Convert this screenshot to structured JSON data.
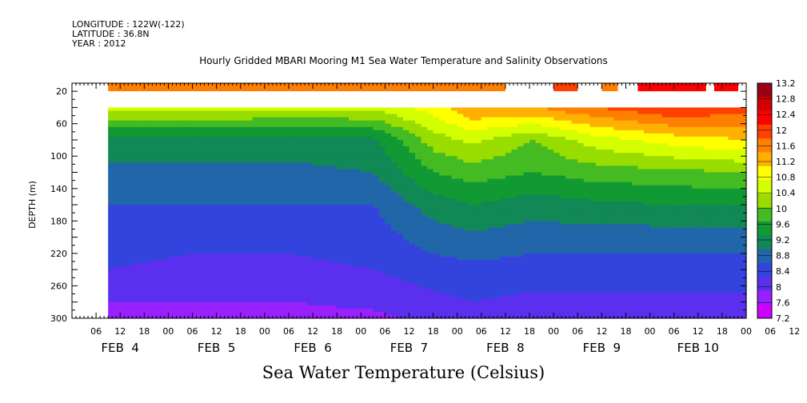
{
  "header": {
    "longitude": "LONGITUDE : 122W(-122)",
    "latitude": "LATITUDE : 36.8N",
    "year": "YEAR : 2012"
  },
  "chart_data": {
    "type": "heatmap",
    "title": "Hourly Gridded MBARI Mooring M1 Sea Water Temperature and Salinity Observations",
    "colorbar_label": "Sea Water Temperature (Celsius)",
    "ylabel": "DEPTH (m)",
    "ylim": [
      300,
      10
    ],
    "y_ticks": [
      20,
      60,
      100,
      140,
      180,
      220,
      260,
      300
    ],
    "x_tick_labels": [
      "06",
      "12",
      "18",
      "00",
      "06",
      "12",
      "18",
      "00",
      "06",
      "12",
      "18",
      "00",
      "06",
      "12",
      "18",
      "00",
      "06",
      "12",
      "18",
      "00",
      "06",
      "12",
      "18",
      "00",
      "06",
      "12",
      "18",
      "00",
      "06",
      "12",
      "18"
    ],
    "x_day_labels": [
      "FEB  4",
      "FEB  5",
      "FEB  6",
      "FEB  7",
      "FEB  8",
      "FEB  9",
      "FEB 10"
    ],
    "colorbar_levels": [
      "13.2",
      "12.8",
      "12.4",
      "12",
      "11.6",
      "11.2",
      "10.8",
      "10.4",
      "10",
      "9.6",
      "9.2",
      "8.8",
      "8.4",
      "8",
      "7.6",
      "7.2"
    ],
    "colors": [
      "#9a0016",
      "#d40000",
      "#ff0000",
      "#ff4000",
      "#ff8000",
      "#ffb000",
      "#ffff00",
      "#d4ff00",
      "#99dd00",
      "#44bb22",
      "#119933",
      "#118855",
      "#2266aa",
      "#3344dd",
      "#5a30ee",
      "#9920ff",
      "#cc00ff"
    ],
    "depths": [
      40,
      80,
      120,
      160,
      200,
      240,
      280,
      300
    ],
    "time_start_hours": 9,
    "time_end_hours": 168,
    "profiles": [
      {
        "t": 9,
        "temps": [
          10.6,
          9.0,
          8.7,
          8.4,
          8.2,
          8.0,
          7.6,
          7.5
        ]
      },
      {
        "t": 30,
        "temps": [
          10.6,
          9.0,
          8.7,
          8.4,
          8.1,
          7.9,
          7.6,
          7.4
        ]
      },
      {
        "t": 54,
        "temps": [
          10.5,
          9.0,
          8.7,
          8.4,
          8.1,
          7.9,
          7.6,
          7.4
        ]
      },
      {
        "t": 75,
        "temps": [
          10.5,
          9.1,
          8.8,
          8.4,
          8.2,
          8.0,
          7.7,
          7.5
        ]
      },
      {
        "t": 90,
        "temps": [
          11.0,
          10.2,
          9.6,
          9.0,
          8.6,
          8.2,
          7.9,
          7.7
        ]
      },
      {
        "t": 100,
        "temps": [
          11.6,
          10.5,
          9.8,
          9.2,
          8.7,
          8.3,
          8.0,
          7.8
        ]
      },
      {
        "t": 115,
        "temps": [
          11.6,
          10.0,
          9.6,
          9.0,
          8.6,
          8.2,
          7.9,
          7.7
        ]
      },
      {
        "t": 130,
        "temps": [
          12.0,
          10.6,
          9.8,
          9.1,
          8.6,
          8.2,
          7.9,
          7.6
        ]
      },
      {
        "t": 150,
        "temps": [
          12.4,
          11.0,
          9.9,
          9.2,
          8.6,
          8.2,
          7.9,
          7.6
        ]
      },
      {
        "t": 168,
        "temps": [
          12.2,
          11.2,
          10.0,
          9.2,
          8.6,
          8.2,
          7.9,
          7.7
        ]
      }
    ],
    "surface_segments": [
      {
        "start": 9,
        "end": 108,
        "value": 11.8
      },
      {
        "start": 120,
        "end": 126,
        "value": 12.0
      },
      {
        "start": 132,
        "end": 136,
        "value": 11.8
      },
      {
        "start": 141,
        "end": 158,
        "value": 12.4
      },
      {
        "start": 160,
        "end": 166,
        "value": 12.6
      }
    ]
  }
}
